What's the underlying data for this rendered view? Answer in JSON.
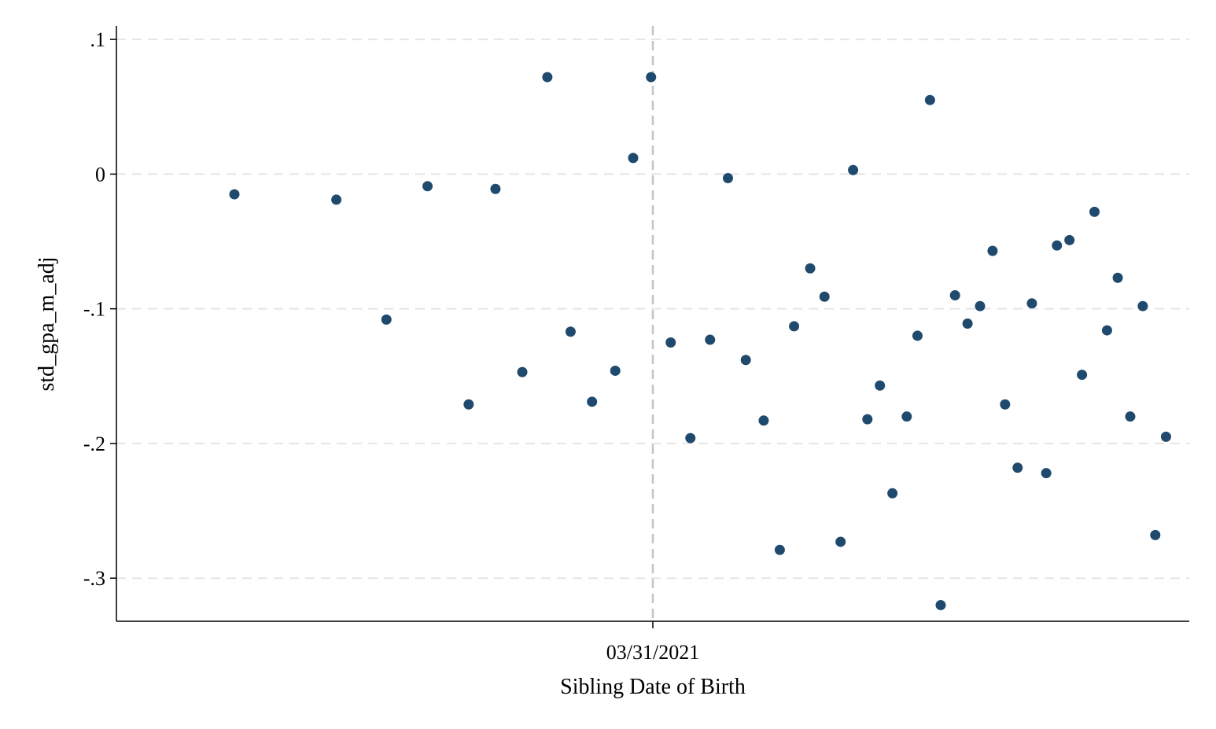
{
  "chart_data": {
    "type": "scatter",
    "title": "",
    "xlabel": "Sibling Date of Birth",
    "ylabel": "std_gpa_m_adj",
    "x_unit": "days relative to 03/31/2021",
    "cutoff_label": "03/31/2021",
    "x_ticks": [
      {
        "value": 0,
        "label": "03/31/2021"
      }
    ],
    "y_ticks": [
      {
        "value": 0.1,
        "label": ".1"
      },
      {
        "value": 0,
        "label": "0"
      },
      {
        "value": -0.1,
        "label": "-.1"
      },
      {
        "value": -0.2,
        "label": "-.2"
      },
      {
        "value": -0.3,
        "label": "-.3"
      }
    ],
    "xlim": [
      -30,
      30
    ],
    "ylim": [
      -0.332,
      0.11
    ],
    "grid": true,
    "series": [
      {
        "color": "#1f4a6e",
        "points": [
          {
            "x": -23.4,
            "y": -0.015
          },
          {
            "x": -17.7,
            "y": -0.019
          },
          {
            "x": -14.9,
            "y": -0.108
          },
          {
            "x": -12.6,
            "y": -0.009
          },
          {
            "x": -10.3,
            "y": -0.171
          },
          {
            "x": -8.8,
            "y": -0.011
          },
          {
            "x": -7.3,
            "y": -0.147
          },
          {
            "x": -5.9,
            "y": 0.072
          },
          {
            "x": -4.6,
            "y": -0.117
          },
          {
            "x": -3.4,
            "y": -0.169
          },
          {
            "x": -2.1,
            "y": -0.146
          },
          {
            "x": -1.1,
            "y": 0.012
          },
          {
            "x": -0.1,
            "y": 0.072
          },
          {
            "x": 1.0,
            "y": -0.125
          },
          {
            "x": 2.1,
            "y": -0.196
          },
          {
            "x": 3.2,
            "y": -0.123
          },
          {
            "x": 4.2,
            "y": -0.003
          },
          {
            "x": 5.2,
            "y": -0.138
          },
          {
            "x": 6.2,
            "y": -0.183
          },
          {
            "x": 7.1,
            "y": -0.279
          },
          {
            "x": 7.9,
            "y": -0.113
          },
          {
            "x": 8.8,
            "y": -0.07
          },
          {
            "x": 9.6,
            "y": -0.091
          },
          {
            "x": 10.5,
            "y": -0.273
          },
          {
            "x": 11.2,
            "y": 0.003
          },
          {
            "x": 12.0,
            "y": -0.182
          },
          {
            "x": 12.7,
            "y": -0.157
          },
          {
            "x": 13.4,
            "y": -0.237
          },
          {
            "x": 14.2,
            "y": -0.18
          },
          {
            "x": 14.8,
            "y": -0.12
          },
          {
            "x": 15.5,
            "y": 0.055
          },
          {
            "x": 16.1,
            "y": -0.32
          },
          {
            "x": 16.9,
            "y": -0.09
          },
          {
            "x": 17.6,
            "y": -0.111
          },
          {
            "x": 18.3,
            "y": -0.098
          },
          {
            "x": 19.0,
            "y": -0.057
          },
          {
            "x": 19.7,
            "y": -0.171
          },
          {
            "x": 20.4,
            "y": -0.218
          },
          {
            "x": 21.2,
            "y": -0.096
          },
          {
            "x": 22.0,
            "y": -0.222
          },
          {
            "x": 22.6,
            "y": -0.053
          },
          {
            "x": 23.3,
            "y": -0.049
          },
          {
            "x": 24.0,
            "y": -0.149
          },
          {
            "x": 24.7,
            "y": -0.028
          },
          {
            "x": 25.4,
            "y": -0.116
          },
          {
            "x": 26.0,
            "y": -0.077
          },
          {
            "x": 26.7,
            "y": -0.18
          },
          {
            "x": 27.4,
            "y": -0.098
          },
          {
            "x": 28.1,
            "y": -0.268
          },
          {
            "x": 28.7,
            "y": -0.195
          }
        ]
      }
    ],
    "colors": {
      "marker": "#1f4a6e",
      "grid": "#e5e5e5",
      "cutoff_line": "#c4c4c4",
      "axis": "#000000"
    }
  }
}
